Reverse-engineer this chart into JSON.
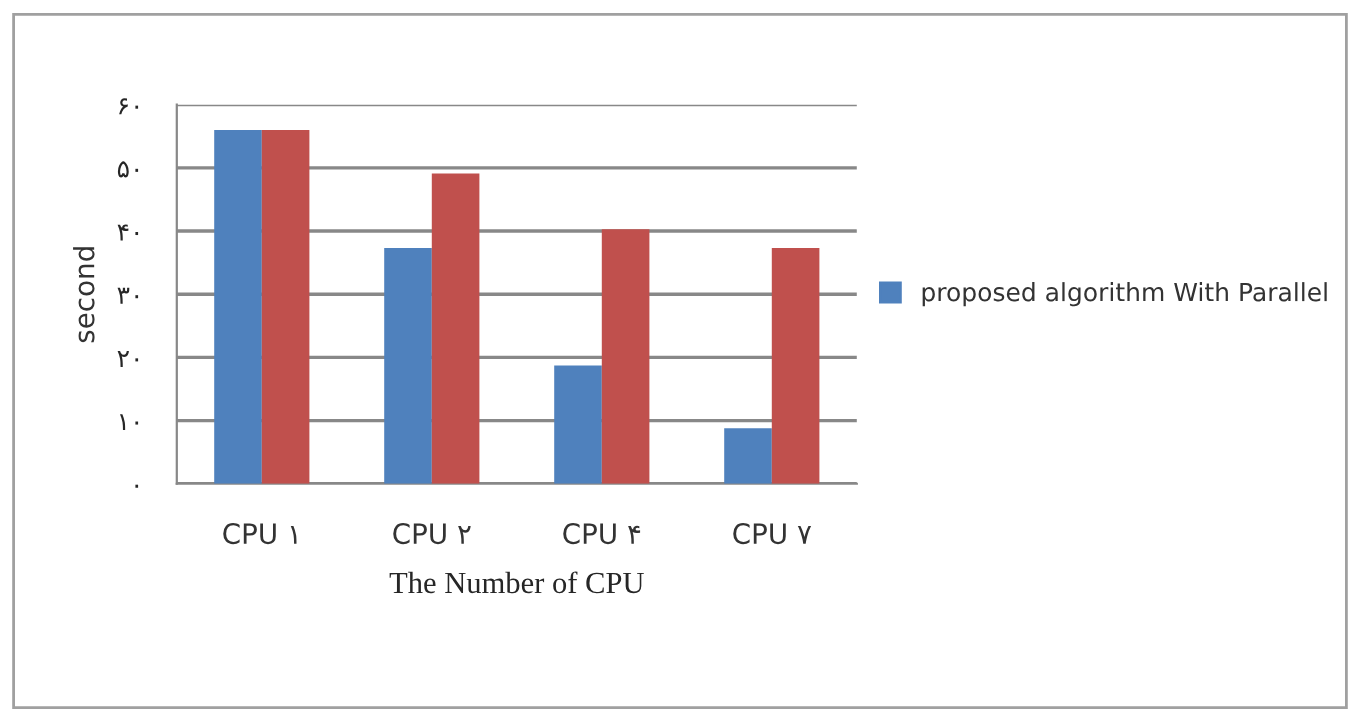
{
  "chart_data": {
    "type": "bar",
    "xlabel": "The Number of CPU",
    "ylabel": "second",
    "categories": [
      "CPU ۱",
      "CPU ۲",
      "CPU ۴",
      "CPU ۷"
    ],
    "series": [
      {
        "name": "proposed algorithm With Parallel",
        "color": "#4f81bd",
        "values": [
          56,
          37.3,
          18.7,
          8.8
        ]
      },
      {
        "color": "#c0504d",
        "values": [
          56,
          49.1,
          40.3,
          37.3
        ]
      }
    ],
    "ylim": [
      0,
      60
    ],
    "yticks": [
      {
        "value": 0,
        "label": "۰"
      },
      {
        "value": 10,
        "label": "۱۰"
      },
      {
        "value": 20,
        "label": "۲۰"
      },
      {
        "value": 30,
        "label": "۳۰"
      },
      {
        "value": 40,
        "label": "۴۰"
      },
      {
        "value": 50,
        "label": "۵۰"
      },
      {
        "value": 60,
        "label": "۶۰"
      }
    ],
    "grid": "y",
    "legend": "right"
  }
}
